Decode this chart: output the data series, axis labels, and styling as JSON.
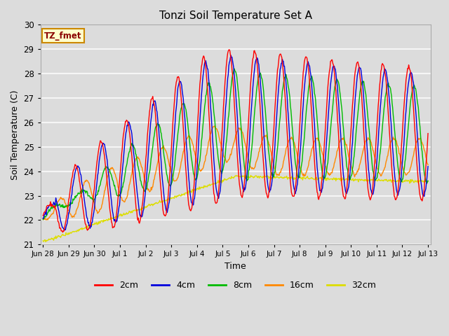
{
  "title": "Tonzi Soil Temperature Set A",
  "xlabel": "Time",
  "ylabel": "Soil Temperature (C)",
  "ylim": [
    21.0,
    30.0
  ],
  "yticks": [
    21.0,
    22.0,
    23.0,
    24.0,
    25.0,
    26.0,
    27.0,
    28.0,
    29.0,
    30.0
  ],
  "plot_bg_color": "#dcdcdc",
  "fig_bg_color": "#dcdcdc",
  "grid_color": "#f5f5f5",
  "colors": {
    "2cm": "#ff0000",
    "4cm": "#0000dd",
    "8cm": "#00bb00",
    "16cm": "#ff8800",
    "32cm": "#dddd00"
  },
  "annotation_text": "TZ_fmet",
  "annotation_bg": "#ffffcc",
  "annotation_border": "#cc8800",
  "x_tick_labels": [
    "Jun 28",
    "Jun 29",
    "Jun 30",
    "Jul 1",
    "Jul 2",
    "Jul 3",
    "Jul 4",
    "Jul 5",
    "Jul 6",
    "Jul 7",
    "Jul 8",
    "Jul 9",
    "Jul 10",
    "Jul 11",
    "Jul 12",
    "Jul 13"
  ],
  "n_points": 720
}
